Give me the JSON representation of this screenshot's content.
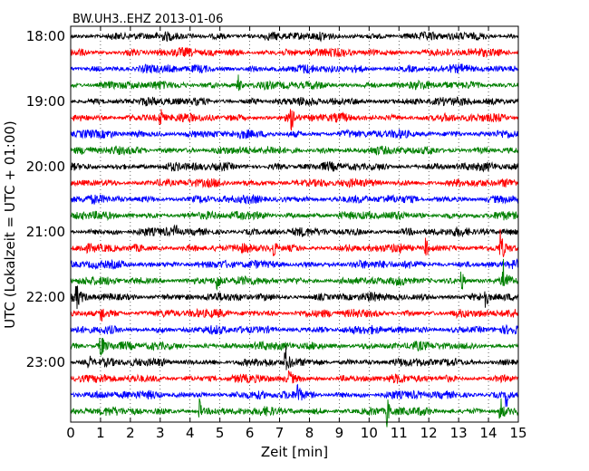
{
  "chart_data": {
    "type": "line",
    "title": "BW.UH3..EHZ 2013-01-06",
    "xlabel": "Zeit  [min]",
    "ylabel": "UTC (Lokalzeit = UTC + 01:00)",
    "xlim": [
      0,
      15
    ],
    "x_ticks": [
      0,
      1,
      2,
      3,
      4,
      5,
      6,
      7,
      8,
      9,
      10,
      11,
      12,
      13,
      14,
      15
    ],
    "x_tick_labels": [
      "0",
      "1",
      "2",
      "3",
      "4",
      "5",
      "6",
      "7",
      "8",
      "9",
      "10",
      "11",
      "12",
      "13",
      "14",
      "15"
    ],
    "y_tick_labels": [
      "18:00",
      "19:00",
      "20:00",
      "21:00",
      "22:00",
      "23:00"
    ],
    "y_tick_trace_index": [
      0,
      4,
      8,
      12,
      16,
      20
    ],
    "trace_minutes": 15,
    "trace_count": 24,
    "color_cycle": [
      "#000000",
      "#ff0000",
      "#0000ff",
      "#008000"
    ],
    "grid": "vertical dotted at each minute",
    "events": [
      {
        "trace": 3,
        "minute": 5.6,
        "amp": 1.3
      },
      {
        "trace": 5,
        "minute": 3.0,
        "amp": 1.2
      },
      {
        "trace": 5,
        "minute": 7.4,
        "amp": 1.2
      },
      {
        "trace": 12,
        "minute": 3.5,
        "amp": 0.9
      },
      {
        "trace": 13,
        "minute": 6.8,
        "amp": 1.1
      },
      {
        "trace": 13,
        "minute": 11.9,
        "amp": 1.1
      },
      {
        "trace": 13,
        "minute": 14.4,
        "amp": 2.1
      },
      {
        "trace": 15,
        "minute": 4.9,
        "amp": 1.2
      },
      {
        "trace": 15,
        "minute": 13.1,
        "amp": 1.3
      },
      {
        "trace": 15,
        "minute": 14.5,
        "amp": 2.4
      },
      {
        "trace": 16,
        "minute": 0.2,
        "amp": 1.3
      },
      {
        "trace": 16,
        "minute": 13.9,
        "amp": 1.3
      },
      {
        "trace": 17,
        "minute": 1.0,
        "amp": 1.6
      },
      {
        "trace": 19,
        "minute": 1.0,
        "amp": 1.8
      },
      {
        "trace": 20,
        "minute": 0.6,
        "amp": 1.0
      },
      {
        "trace": 20,
        "minute": 7.2,
        "amp": 1.8
      },
      {
        "trace": 21,
        "minute": 7.3,
        "amp": 1.0
      },
      {
        "trace": 22,
        "minute": 7.6,
        "amp": 1.7
      },
      {
        "trace": 22,
        "minute": 14.6,
        "amp": 1.7
      },
      {
        "trace": 23,
        "minute": 4.3,
        "amp": 1.6
      },
      {
        "trace": 23,
        "minute": 10.6,
        "amp": 1.8
      },
      {
        "trace": 23,
        "minute": 14.4,
        "amp": 1.8
      }
    ]
  }
}
